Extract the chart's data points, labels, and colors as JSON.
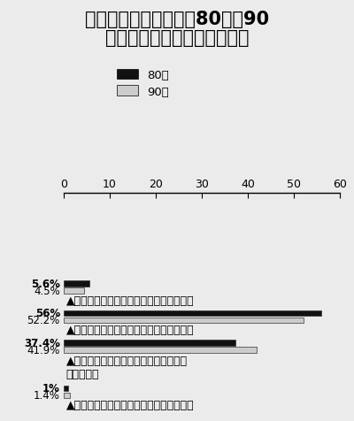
{
  "title_line1": "在人与人相处的时候，80后和90",
  "title_line2": "后如何处理利人与利己的关系",
  "legend_labels": [
    "80后",
    "90后"
  ],
  "groups": [
    {
      "bar80": 5.6,
      "bar90": 4.5,
      "label80": "5.6%",
      "label90": "4.5%",
      "annotation": "▲主要为别人着想，不考虑自己的利益得失",
      "annot_lines": 1
    },
    {
      "bar80": 56.0,
      "bar90": 52.2,
      "label80": "56%",
      "label90": "52.2%",
      "annotation": "▲先为别人着想，同时也要顾及自己的利益",
      "annot_lines": 1
    },
    {
      "bar80": 37.4,
      "bar90": 41.9,
      "label80": "37.4%",
      "label90": "41.9%",
      "annotation": "▲先为自己的利益着想，但同时也不损害\n别人的利益",
      "annot_lines": 2
    },
    {
      "bar80": 1.0,
      "bar90": 1.4,
      "label80": "1%",
      "label90": "1.4%",
      "annotation": "▲主要关心自己的利益，不考虑别人的得失",
      "annot_lines": 1
    }
  ],
  "xlim": [
    0,
    60
  ],
  "xticks": [
    0,
    10,
    20,
    30,
    40,
    50,
    60
  ],
  "bar_height": 0.38,
  "color_80": "#111111",
  "color_90": "#cccccc",
  "bg_color": "#ebebeb",
  "title_fontsize": 15,
  "tick_fontsize": 9,
  "label_fontsize": 8.5,
  "annot_fontsize": 9
}
